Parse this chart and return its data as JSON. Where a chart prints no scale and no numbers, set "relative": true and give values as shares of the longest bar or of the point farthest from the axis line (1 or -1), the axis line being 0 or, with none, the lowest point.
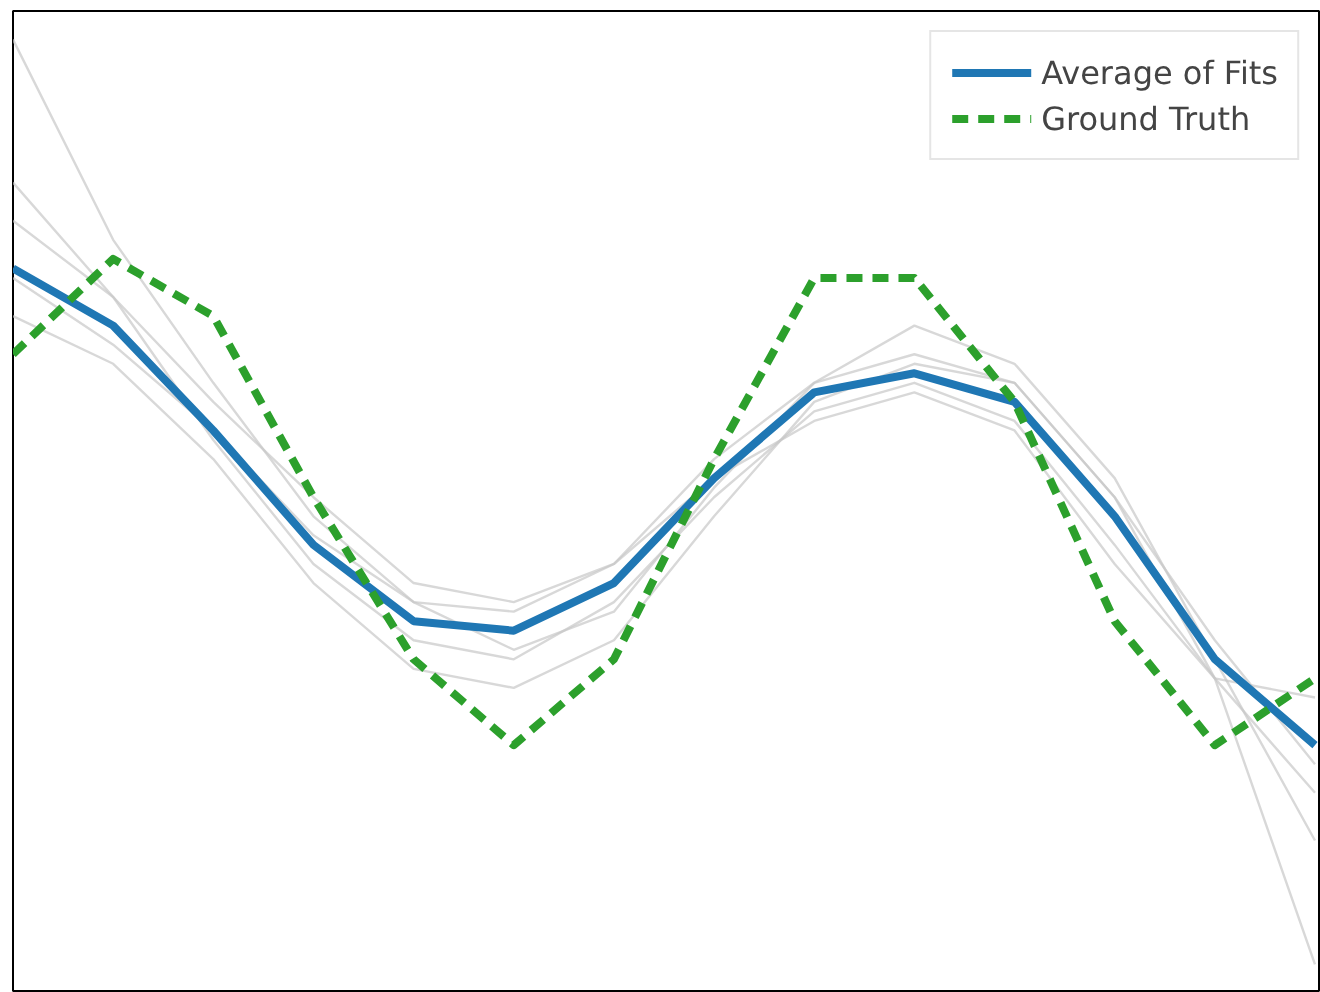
{
  "chart_data": {
    "type": "line",
    "relative": true,
    "legend": "top right",
    "categories": [
      null,
      null,
      null,
      null,
      null,
      null,
      null,
      null,
      null,
      null,
      null,
      null,
      null,
      null
    ],
    "series": [
      {
        "color": "#c8c8c8",
        "values": [
          1.0,
          0.79,
          0.64,
          0.5,
          0.41,
          0.4,
          0.45,
          0.56,
          0.64,
          0.67,
          0.64,
          0.52,
          0.33,
          0.03
        ]
      },
      {
        "color": "#c8c8c8",
        "values": [
          0.71,
          0.66,
          0.56,
          0.43,
          0.34,
          0.32,
          0.37,
          0.5,
          0.62,
          0.66,
          0.64,
          0.52,
          0.37,
          0.24
        ]
      },
      {
        "color": "#c8c8c8",
        "values": [
          0.81,
          0.73,
          0.62,
          0.52,
          0.43,
          0.41,
          0.45,
          0.54,
          0.6,
          0.63,
          0.59,
          0.45,
          0.33,
          0.31
        ]
      },
      {
        "color": "#c8c8c8",
        "values": [
          0.75,
          0.68,
          0.59,
          0.48,
          0.41,
          0.36,
          0.4,
          0.53,
          0.64,
          0.7,
          0.66,
          0.54,
          0.35,
          0.16
        ]
      },
      {
        "color": "#c8c8c8",
        "values": [
          0.85,
          0.73,
          0.58,
          0.45,
          0.37,
          0.35,
          0.41,
          0.52,
          0.61,
          0.64,
          0.6,
          0.47,
          0.33,
          0.21
        ]
      },
      {
        "name": "Average of Fits",
        "color": "#1f77b4",
        "line_style": "solid",
        "values": [
          0.76,
          0.7,
          0.59,
          0.47,
          0.39,
          0.38,
          0.43,
          0.54,
          0.63,
          0.65,
          0.62,
          0.5,
          0.35,
          0.26
        ]
      },
      {
        "name": "Ground Truth",
        "color": "#2ca02c",
        "line_style": "dashed",
        "values": [
          0.67,
          0.77,
          0.71,
          0.52,
          0.35,
          0.26,
          0.35,
          0.56,
          0.75,
          0.75,
          0.62,
          0.39,
          0.26,
          0.33
        ]
      }
    ]
  }
}
